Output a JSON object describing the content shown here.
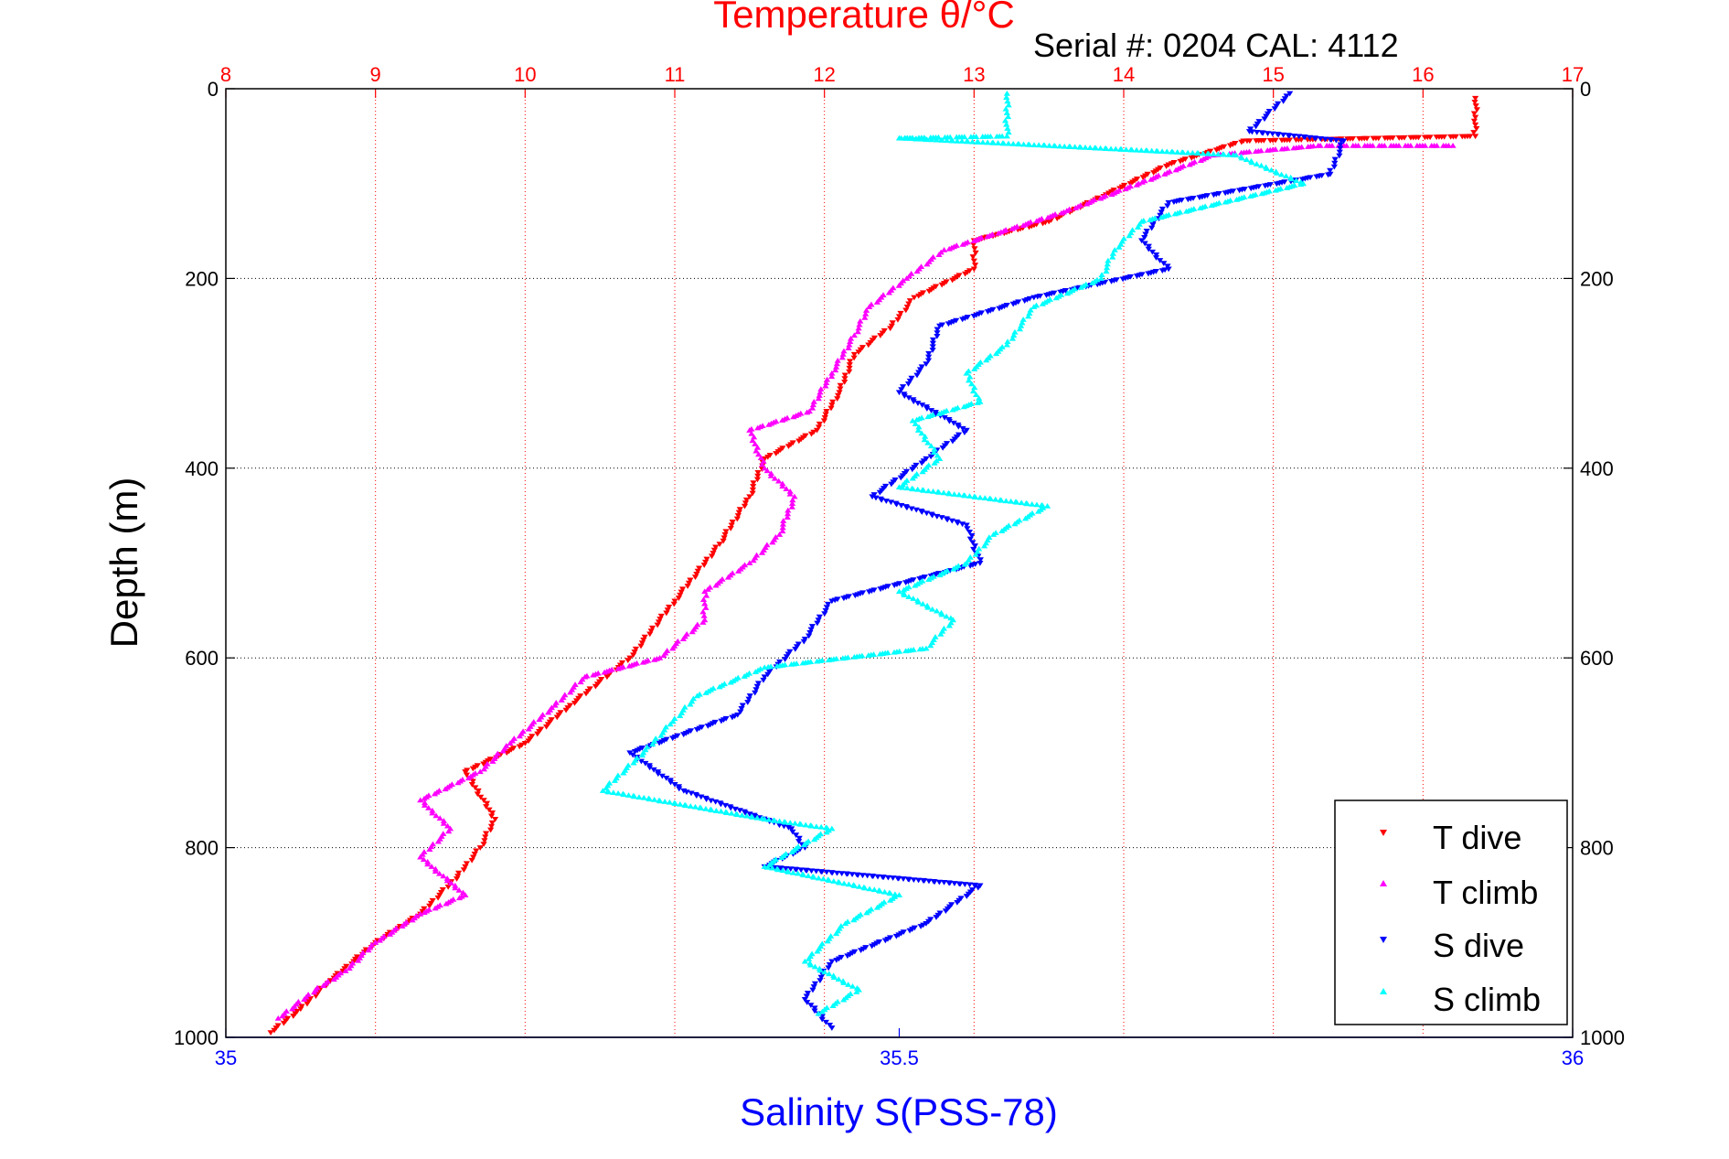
{
  "chart_data": {
    "type": "scatter",
    "title": "Temperature θ/°C",
    "subtitle": "Serial #: 0204  CAL: 4112",
    "top_axis": {
      "label": "Temperature θ/°C",
      "range": [
        8,
        17
      ],
      "ticks": [
        "8",
        "9",
        "10",
        "11",
        "12",
        "13",
        "14",
        "15",
        "16",
        "17"
      ],
      "color": "#ff0000"
    },
    "bottom_axis": {
      "label": "Salinity S(PSS-78)",
      "range": [
        35,
        36
      ],
      "ticks": [
        "35",
        "35.5",
        "36"
      ],
      "color": "#0000ff"
    },
    "y_axis": {
      "label": "Depth (m)",
      "range": [
        0,
        1000
      ],
      "reversed": true,
      "ticks": [
        "0",
        "200",
        "400",
        "600",
        "800",
        "1000"
      ]
    },
    "grid": true,
    "legend": {
      "placement": "bottom-right"
    },
    "colors": {
      "t_dive": "#ff0000",
      "t_climb": "#ff00ff",
      "s_dive": "#0000ff",
      "s_climb": "#00ffff"
    },
    "series": [
      {
        "name": "T dive",
        "axis": "top",
        "marker": "triangle-down",
        "color": "#ff0000",
        "points": [
          [
            16.35,
            10
          ],
          [
            16.35,
            30
          ],
          [
            16.35,
            50
          ],
          [
            14.8,
            55
          ],
          [
            14.3,
            80
          ],
          [
            13.9,
            110
          ],
          [
            13.5,
            140
          ],
          [
            13.0,
            160
          ],
          [
            13.0,
            190
          ],
          [
            12.6,
            220
          ],
          [
            12.45,
            250
          ],
          [
            12.2,
            280
          ],
          [
            12.1,
            320
          ],
          [
            11.95,
            360
          ],
          [
            11.6,
            390
          ],
          [
            11.5,
            430
          ],
          [
            11.3,
            480
          ],
          [
            11.0,
            540
          ],
          [
            10.7,
            600
          ],
          [
            10.3,
            650
          ],
          [
            10.0,
            690
          ],
          [
            9.6,
            720
          ],
          [
            9.8,
            770
          ],
          [
            9.7,
            800
          ],
          [
            9.55,
            830
          ],
          [
            9.3,
            870
          ],
          [
            9.0,
            900
          ],
          [
            8.7,
            940
          ],
          [
            8.5,
            970
          ],
          [
            8.3,
            995
          ]
        ]
      },
      {
        "name": "T climb",
        "axis": "top",
        "marker": "triangle-up",
        "color": "#ff00ff",
        "points": [
          [
            16.2,
            60
          ],
          [
            15.3,
            60
          ],
          [
            14.6,
            70
          ],
          [
            14.1,
            100
          ],
          [
            13.6,
            130
          ],
          [
            13.2,
            150
          ],
          [
            12.8,
            170
          ],
          [
            12.55,
            200
          ],
          [
            12.3,
            230
          ],
          [
            12.2,
            260
          ],
          [
            12.05,
            300
          ],
          [
            11.9,
            340
          ],
          [
            11.5,
            360
          ],
          [
            11.6,
            400
          ],
          [
            11.8,
            430
          ],
          [
            11.7,
            470
          ],
          [
            11.5,
            500
          ],
          [
            11.2,
            530
          ],
          [
            11.2,
            560
          ],
          [
            10.9,
            600
          ],
          [
            10.4,
            620
          ],
          [
            10.2,
            650
          ],
          [
            9.9,
            690
          ],
          [
            9.7,
            720
          ],
          [
            9.3,
            750
          ],
          [
            9.5,
            780
          ],
          [
            9.3,
            810
          ],
          [
            9.6,
            850
          ],
          [
            9.3,
            870
          ],
          [
            9.0,
            900
          ],
          [
            8.8,
            930
          ],
          [
            8.6,
            950
          ],
          [
            8.35,
            980
          ]
        ]
      },
      {
        "name": "S dive",
        "axis": "bottom",
        "marker": "triangle-down",
        "color": "#0000ff",
        "points": [
          [
            35.79,
            5
          ],
          [
            35.76,
            45
          ],
          [
            35.83,
            55
          ],
          [
            35.82,
            90
          ],
          [
            35.7,
            120
          ],
          [
            35.68,
            160
          ],
          [
            35.7,
            190
          ],
          [
            35.6,
            220
          ],
          [
            35.53,
            250
          ],
          [
            35.52,
            290
          ],
          [
            35.5,
            320
          ],
          [
            35.55,
            360
          ],
          [
            35.52,
            390
          ],
          [
            35.48,
            430
          ],
          [
            35.55,
            460
          ],
          [
            35.56,
            500
          ],
          [
            35.45,
            540
          ],
          [
            35.43,
            580
          ],
          [
            35.4,
            620
          ],
          [
            35.38,
            660
          ],
          [
            35.3,
            700
          ],
          [
            35.34,
            740
          ],
          [
            35.42,
            780
          ],
          [
            35.43,
            800
          ],
          [
            35.4,
            820
          ],
          [
            35.56,
            840
          ],
          [
            35.52,
            880
          ],
          [
            35.45,
            920
          ],
          [
            35.43,
            960
          ],
          [
            35.45,
            990
          ]
        ]
      },
      {
        "name": "S climb",
        "axis": "bottom",
        "marker": "triangle-up",
        "color": "#00ffff",
        "points": [
          [
            35.58,
            5
          ],
          [
            35.58,
            50
          ],
          [
            35.5,
            52
          ],
          [
            35.75,
            70
          ],
          [
            35.8,
            100
          ],
          [
            35.68,
            140
          ],
          [
            35.66,
            170
          ],
          [
            35.65,
            200
          ],
          [
            35.6,
            230
          ],
          [
            35.58,
            270
          ],
          [
            35.55,
            300
          ],
          [
            35.56,
            330
          ],
          [
            35.51,
            350
          ],
          [
            35.53,
            390
          ],
          [
            35.5,
            420
          ],
          [
            35.61,
            440
          ],
          [
            35.57,
            470
          ],
          [
            35.55,
            500
          ],
          [
            35.5,
            530
          ],
          [
            35.54,
            560
          ],
          [
            35.52,
            590
          ],
          [
            35.4,
            610
          ],
          [
            35.35,
            640
          ],
          [
            35.33,
            670
          ],
          [
            35.31,
            700
          ],
          [
            35.28,
            740
          ],
          [
            35.4,
            770
          ],
          [
            35.45,
            780
          ],
          [
            35.4,
            820
          ],
          [
            35.5,
            850
          ],
          [
            35.46,
            880
          ],
          [
            35.43,
            920
          ],
          [
            35.47,
            950
          ],
          [
            35.44,
            975
          ]
        ]
      }
    ]
  }
}
